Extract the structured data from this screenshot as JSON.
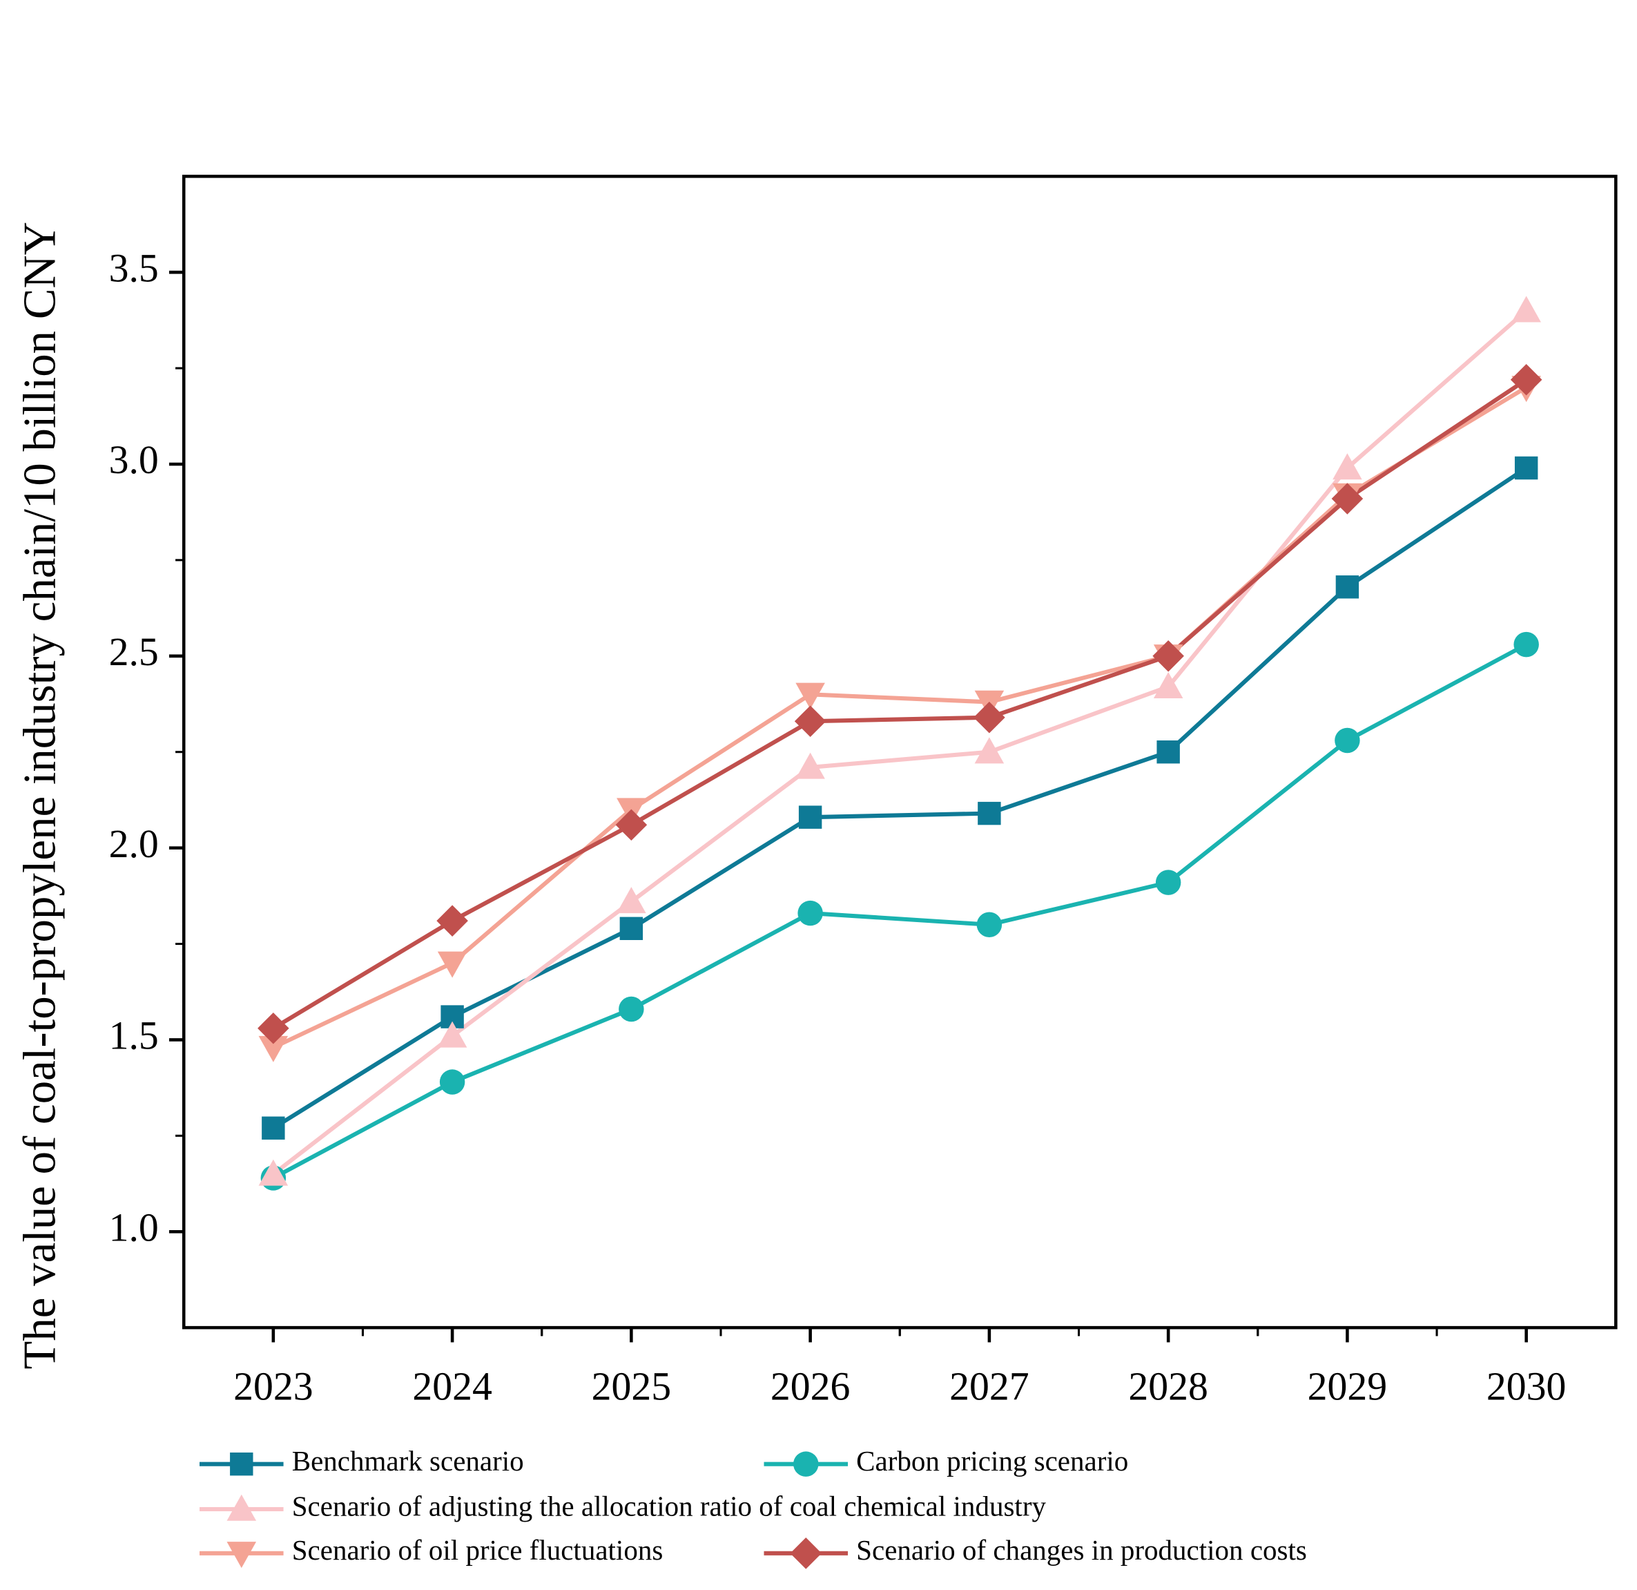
{
  "chart_data": {
    "type": "line",
    "y_label": "The value of coal-to-propylene industry chain/10 billion CNY",
    "x": [
      2023,
      2024,
      2025,
      2026,
      2027,
      2028,
      2029,
      2030
    ],
    "xlim": [
      2022.5,
      2030.5
    ],
    "xticks": [
      2023,
      2024,
      2025,
      2026,
      2027,
      2028,
      2029,
      2030
    ],
    "ylim": [
      0.75,
      3.75
    ],
    "yticks": [
      {
        "value": 1,
        "label": "1.0"
      },
      1.5,
      {
        "value": 2,
        "label": "2.0"
      },
      2.5,
      {
        "value": 3,
        "label": "3.0"
      },
      3.5
    ],
    "series": [
      {
        "name": "Benchmark scenario",
        "color": "#0e7a96",
        "marker": "square",
        "values": [
          1.27,
          1.56,
          1.79,
          2.08,
          2.09,
          2.25,
          2.68,
          2.99
        ]
      },
      {
        "name": "Carbon pricing scenario",
        "color": "#1ab3b0",
        "marker": "circle",
        "values": [
          1.14,
          1.39,
          1.58,
          1.83,
          1.8,
          1.91,
          2.28,
          2.53
        ]
      },
      {
        "name": "Scenario of adjusting the allocation ratio of coal chemical industry",
        "color": "#f9c4c8",
        "marker": "triangle-up",
        "values": [
          1.15,
          1.51,
          1.86,
          2.21,
          2.25,
          2.42,
          2.99,
          3.4
        ]
      },
      {
        "name": "Scenario of oil price fluctuations",
        "color": "#f4a394",
        "marker": "triangle-down",
        "values": [
          1.48,
          1.7,
          2.1,
          2.4,
          2.38,
          2.5,
          2.92,
          3.2
        ]
      },
      {
        "name": "Scenario of changes in production costs",
        "color": "#c0504d",
        "marker": "diamond",
        "values": [
          1.53,
          1.81,
          2.06,
          2.33,
          2.34,
          2.5,
          2.91,
          3.22
        ]
      }
    ]
  }
}
